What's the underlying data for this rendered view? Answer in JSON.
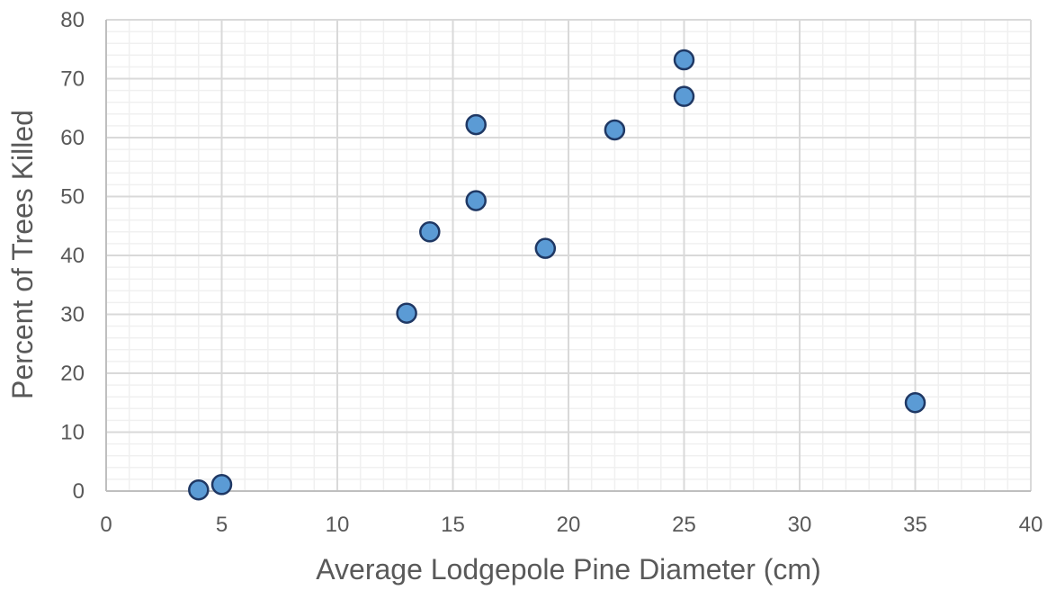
{
  "chart_data": {
    "type": "scatter",
    "title": "",
    "xlabel": "Average Lodgepole Pine Diameter (cm)",
    "ylabel": "Percent of Trees Killed",
    "xlim": [
      0,
      40
    ],
    "ylim": [
      0,
      80
    ],
    "x_ticks": [
      0,
      5,
      10,
      15,
      20,
      25,
      30,
      35,
      40
    ],
    "y_ticks": [
      0,
      10,
      20,
      30,
      40,
      50,
      60,
      70,
      80
    ],
    "x_minor_step": 1,
    "y_minor_step": 2,
    "grid": true,
    "legend": "none",
    "series": [
      {
        "x": [
          4,
          5,
          13,
          14,
          16,
          16,
          19,
          22,
          25,
          25,
          35
        ],
        "y": [
          0.2,
          1.1,
          30.2,
          44.0,
          62.2,
          49.3,
          41.2,
          61.3,
          73.2,
          67.0,
          15.0
        ]
      }
    ],
    "colors": {
      "marker_fill": "#5B9BD5",
      "marker_stroke": "#1F3864",
      "major_grid": "#D9D9D9",
      "minor_grid": "#F0F0F0",
      "axis_line": "#BFBFBF",
      "text": "#595959"
    }
  }
}
